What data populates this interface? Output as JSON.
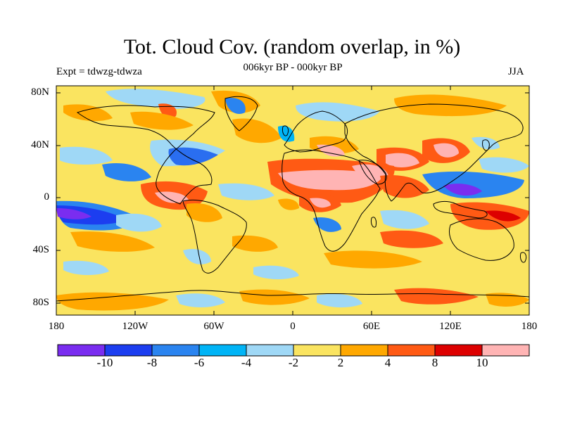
{
  "title": "Tot. Cloud Cov. (random overlap, in %)",
  "subtitle": "006kyr BP - 000kyr BP",
  "experiment": "Expt = tdwzg-tdwza",
  "season": "JJA",
  "map": {
    "type": "filled-contour world map",
    "projection": "cylindrical equidistant",
    "lon_range": [
      -180,
      180
    ],
    "lat_range": [
      -90,
      90
    ],
    "lat_ticks": [
      "80N",
      "40N",
      "0",
      "40S",
      "80S"
    ],
    "lon_ticks": [
      "180",
      "120W",
      "60W",
      "0",
      "60E",
      "120E",
      "180"
    ],
    "background_level_color": "#fae460",
    "regions": [
      {
        "name": "tropical east pacific negative band",
        "color": "#2a6ef0"
      },
      {
        "name": "central america positive",
        "color": "#ff5a14"
      },
      {
        "name": "sahel north africa positive",
        "color": "#ffb4b4"
      },
      {
        "name": "arabia positive",
        "color": "#ffb4b4"
      },
      {
        "name": "india positive",
        "color": "#ff5a14"
      },
      {
        "name": "east china positive",
        "color": "#ffb4b4"
      },
      {
        "name": "western pacific negative",
        "color": "#7a2df0"
      },
      {
        "name": "equatorial atlantic negative",
        "color": "#66c8ff"
      }
    ]
  },
  "colorbar": {
    "colors": [
      "#7a2df0",
      "#1c3ef0",
      "#2a84f0",
      "#00b4f6",
      "#9fd8f6",
      "#fae460",
      "#ffa800",
      "#ff5a14",
      "#dd0000",
      "#ffb4b4"
    ],
    "labels": [
      "-10",
      "-8",
      "-6",
      "-4",
      "-2",
      "2",
      "4",
      "8",
      "10"
    ]
  }
}
